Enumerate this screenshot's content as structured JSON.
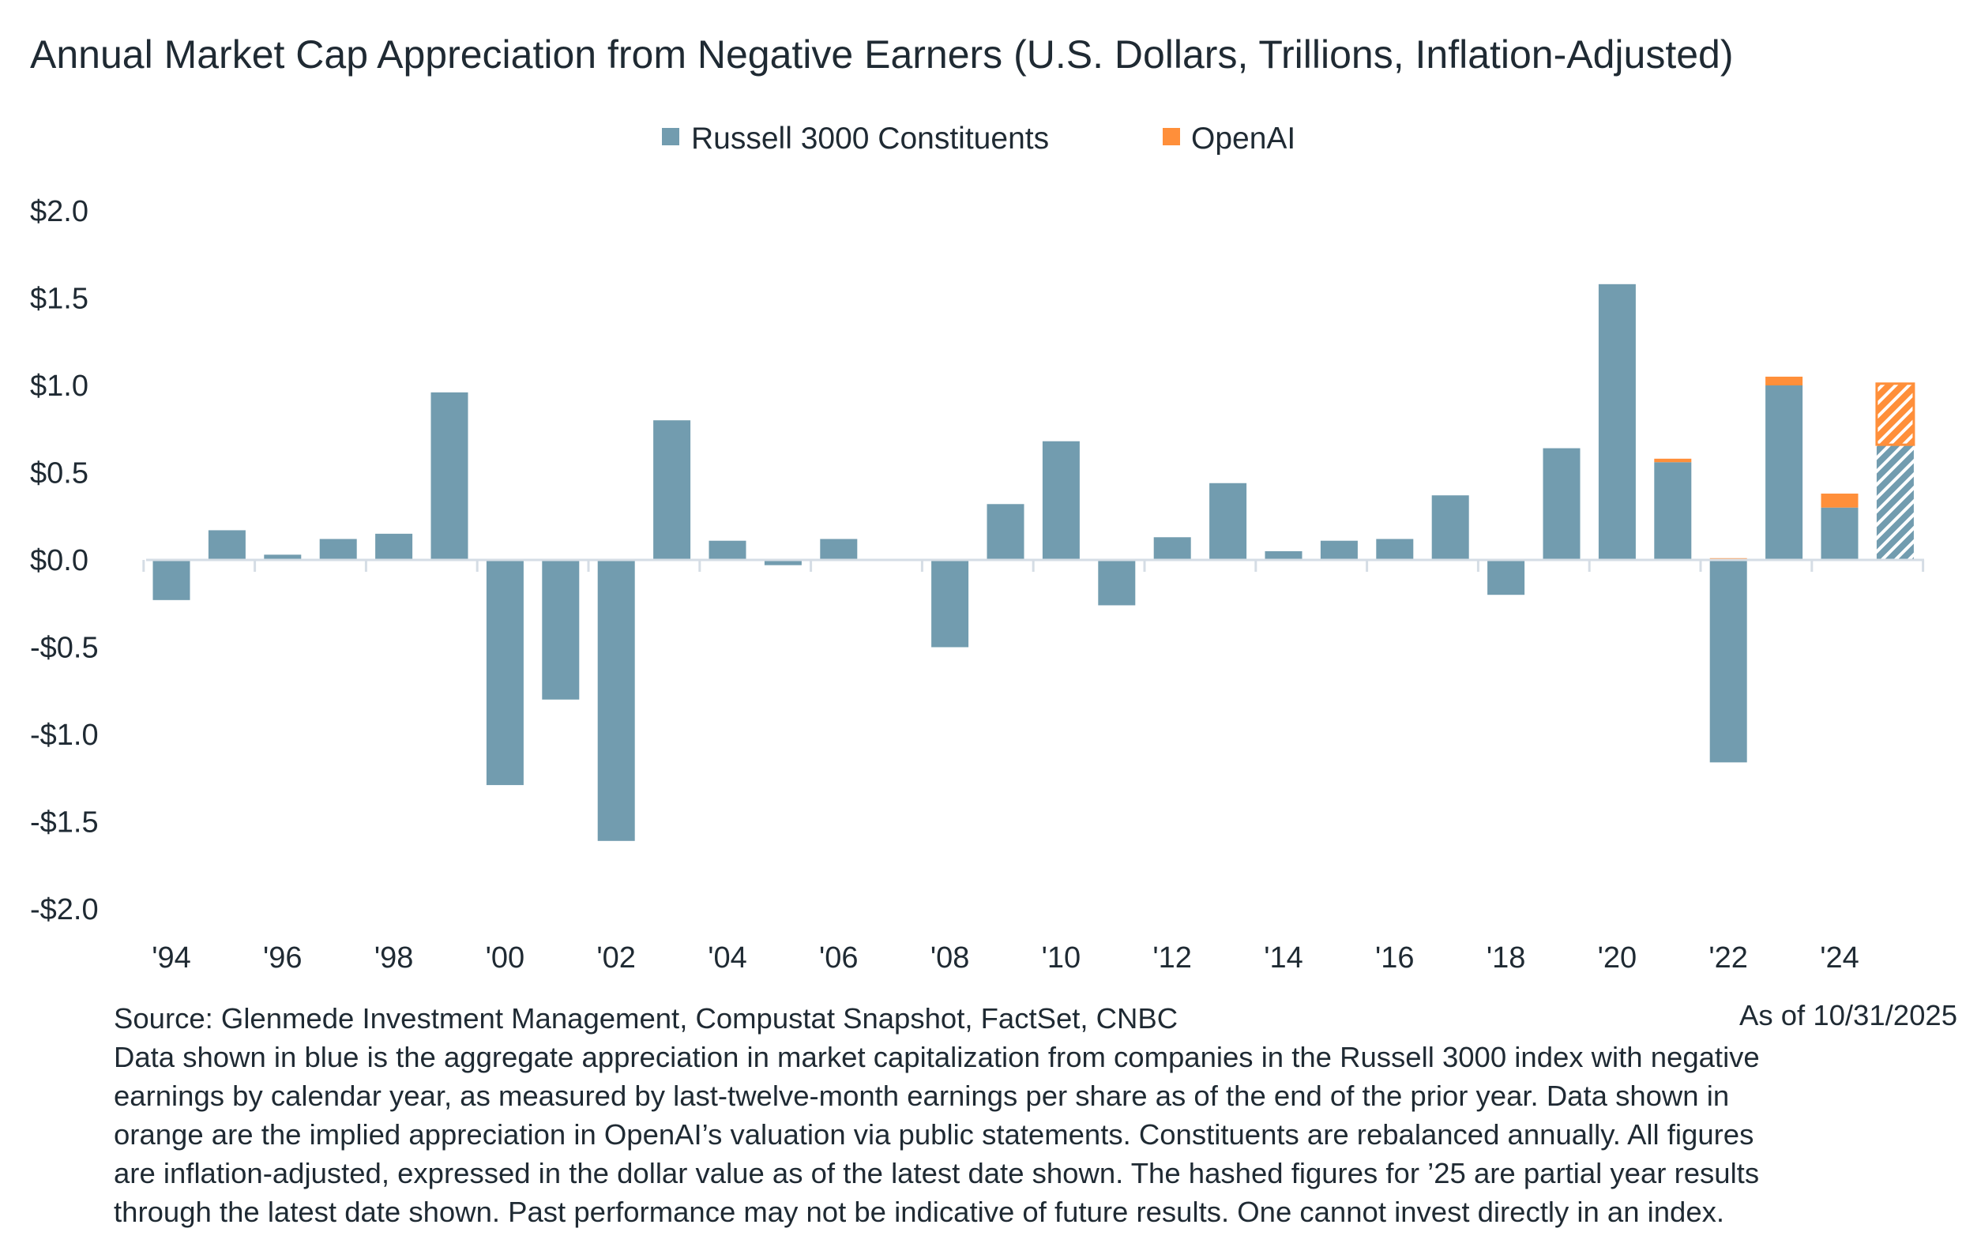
{
  "chart_data": {
    "type": "bar",
    "stacked": true,
    "title": "Annual Market Cap Appreciation from Negative Earners (U.S. Dollars, Trillions, Inflation-Adjusted)",
    "xlabel": "",
    "ylabel": "",
    "ylim": [
      -2.0,
      2.0
    ],
    "yticks": [
      "$2.0",
      "$1.5",
      "$1.0",
      "$0.5",
      "$0.0",
      "-$0.5",
      "-$1.0",
      "-$1.5",
      "-$2.0"
    ],
    "ytick_values": [
      2.0,
      1.5,
      1.0,
      0.5,
      0.0,
      -0.5,
      -1.0,
      -1.5,
      -2.0
    ],
    "categories": [
      1994,
      1995,
      1996,
      1997,
      1998,
      1999,
      2000,
      2001,
      2002,
      2003,
      2004,
      2005,
      2006,
      2007,
      2008,
      2009,
      2010,
      2011,
      2012,
      2013,
      2014,
      2015,
      2016,
      2017,
      2018,
      2019,
      2020,
      2021,
      2022,
      2023,
      2024,
      2025
    ],
    "xtick_labels": [
      "'94",
      "'96",
      "'98",
      "'00",
      "'02",
      "'04",
      "'06",
      "'08",
      "'10",
      "'12",
      "'14",
      "'16",
      "'18",
      "'20",
      "'22",
      "'24"
    ],
    "legend_position": "top-center",
    "grid": false,
    "hatched_categories": [
      2025
    ],
    "series": [
      {
        "name": "Russell 3000 Constituents",
        "color": "#729caf",
        "values": [
          -0.23,
          0.17,
          0.03,
          0.12,
          0.15,
          0.96,
          -1.29,
          -0.8,
          -1.61,
          0.8,
          0.11,
          -0.03,
          0.12,
          0.0,
          -0.5,
          0.32,
          0.68,
          -0.26,
          0.13,
          0.44,
          0.05,
          0.11,
          0.12,
          0.37,
          -0.2,
          0.64,
          1.58,
          0.56,
          -1.16,
          1.0,
          0.3,
          0.66
        ]
      },
      {
        "name": "OpenAI",
        "color": "#ff8f3a",
        "values": [
          0,
          0,
          0,
          0,
          0,
          0,
          0,
          0,
          0,
          0,
          0,
          0,
          0,
          0,
          0,
          0,
          0,
          0,
          0,
          0,
          0,
          0,
          0,
          0,
          0,
          0,
          0,
          0.02,
          0.01,
          0.05,
          0.08,
          0.35
        ]
      }
    ]
  },
  "footer": {
    "source": "Source: Glenmede Investment Management, Compustat Snapshot, FactSet, CNBC",
    "as_of": "As of 10/31/2025",
    "note_lines": [
      "Data shown in blue is the aggregate appreciation in market capitalization from companies in the Russell 3000 index with negative",
      "earnings by calendar year, as measured by last-twelve-month earnings per share as of the end of the prior year. Data shown in",
      "orange are the implied appreciation in OpenAI’s valuation via public statements. Constituents are rebalanced annually. All figures",
      "are inflation-adjusted, expressed in the dollar value as of the latest date shown. The hashed figures for ’25 are partial year results",
      "through the latest date shown. Past performance may not be indicative of future results. One cannot invest directly in an index."
    ]
  }
}
